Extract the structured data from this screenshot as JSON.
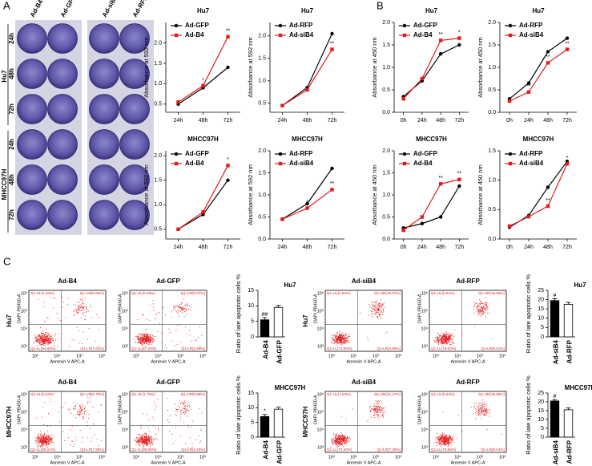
{
  "panel_labels": [
    "A",
    "B",
    "C"
  ],
  "wells": {
    "columns": [
      "Ad-B4",
      "Ad-GFP",
      "Ad-siB4",
      "Ad-RFP"
    ],
    "rows": [
      "24h",
      "48h",
      "72h",
      "24h",
      "48h",
      "72h"
    ],
    "groups": [
      "Hu7",
      "MHCC97H"
    ]
  },
  "chart_data": [
    {
      "type": "line",
      "title": "Hu7",
      "ylabel": "Absorbance at 592 nm",
      "categories": [
        "24h",
        "48h",
        "72h"
      ],
      "ylim": [
        0.3,
        2.5
      ],
      "yticks": [
        0.5,
        {
          "value": 1,
          "label": "1.0"
        },
        1.5,
        {
          "value": 2,
          "label": "2.0"
        }
      ],
      "series": [
        {
          "name": "Ad-GFP",
          "color": "#000000",
          "values": [
            0.5,
            0.9,
            1.4
          ],
          "significance": [
            null,
            null,
            null
          ]
        },
        {
          "name": "Ad-B4",
          "color": "#e41a1c",
          "values": [
            0.55,
            0.95,
            2.15
          ],
          "significance": [
            null,
            "*",
            "**"
          ]
        }
      ]
    },
    {
      "type": "line",
      "title": "Hu7",
      "ylabel": "Absorbance at 592 nm",
      "categories": [
        "24h",
        "48h",
        "72h"
      ],
      "ylim": [
        0.3,
        2.3
      ],
      "yticks": [
        0.5,
        {
          "value": 1,
          "label": "1.0"
        },
        1.5,
        {
          "value": 2,
          "label": "2.0"
        }
      ],
      "series": [
        {
          "name": "Ad-RFP",
          "color": "#000000",
          "values": [
            0.45,
            0.85,
            2.05
          ],
          "significance": [
            null,
            null,
            null
          ]
        },
        {
          "name": "Ad-siB4",
          "color": "#e41a1c",
          "values": [
            0.45,
            0.8,
            1.7
          ],
          "significance": [
            null,
            null,
            "**"
          ]
        }
      ]
    },
    {
      "type": "line",
      "title": "Hu7",
      "ylabel": "Absorbance at 450 nm",
      "categories": [
        "0h",
        "24h",
        "48h",
        "72h"
      ],
      "ylim": [
        0,
        2
      ],
      "yticks": [
        {
          "value": 0,
          "label": "0.0"
        },
        0.5,
        {
          "value": 1,
          "label": "1.0"
        },
        1.5,
        {
          "value": 2,
          "label": "2.0"
        }
      ],
      "series": [
        {
          "name": "Ad-GFP",
          "color": "#000000",
          "values": [
            0.35,
            0.7,
            1.3,
            1.5
          ],
          "significance": [
            null,
            null,
            null,
            null
          ]
        },
        {
          "name": "Ad-B4",
          "color": "#e41a1c",
          "values": [
            0.3,
            0.75,
            1.6,
            1.65
          ],
          "significance": [
            null,
            null,
            "**",
            "*"
          ]
        }
      ]
    },
    {
      "type": "line",
      "title": "Hu7",
      "ylabel": "Absorbance at 450 nm",
      "categories": [
        "0h",
        "24h",
        "48h",
        "72h"
      ],
      "ylim": [
        0,
        2
      ],
      "yticks": [
        {
          "value": 0,
          "label": "0.0"
        },
        0.5,
        {
          "value": 1,
          "label": "1.0"
        },
        1.5,
        {
          "value": 2,
          "label": "2.0"
        }
      ],
      "series": [
        {
          "name": "Ad-RFP",
          "color": "#000000",
          "values": [
            0.3,
            0.65,
            1.35,
            1.65
          ],
          "significance": [
            null,
            null,
            null,
            null
          ]
        },
        {
          "name": "Ad-siB4",
          "color": "#e41a1c",
          "values": [
            0.25,
            0.45,
            1.1,
            1.4
          ],
          "significance": [
            null,
            "**",
            "**",
            "**"
          ]
        }
      ]
    },
    {
      "type": "line",
      "title": "MHCC97H",
      "ylabel": "Absorbance at 592 nm",
      "categories": [
        "24h",
        "48h",
        "72h"
      ],
      "ylim": [
        0.3,
        2.1
      ],
      "yticks": [
        0.5,
        {
          "value": 1,
          "label": "1.0"
        },
        1.5,
        {
          "value": 2,
          "label": "2.0"
        }
      ],
      "series": [
        {
          "name": "Ad-GFP",
          "color": "#000000",
          "values": [
            0.5,
            0.8,
            1.5
          ],
          "significance": [
            null,
            null,
            null
          ]
        },
        {
          "name": "Ad-B4",
          "color": "#e41a1c",
          "values": [
            0.5,
            0.85,
            1.8
          ],
          "significance": [
            null,
            null,
            "*"
          ]
        }
      ]
    },
    {
      "type": "line",
      "title": "MHCC97H",
      "ylabel": "Absorbance at 592 nm",
      "categories": [
        "24h",
        "48h",
        "72h"
      ],
      "ylim": [
        0,
        2
      ],
      "yticks": [
        {
          "value": 0,
          "label": "0.0"
        },
        0.5,
        {
          "value": 1,
          "label": "1.0"
        },
        1.5,
        {
          "value": 2,
          "label": "2.0"
        }
      ],
      "series": [
        {
          "name": "Ad-RFP",
          "color": "#000000",
          "values": [
            0.45,
            0.8,
            1.6
          ],
          "significance": [
            null,
            null,
            null
          ]
        },
        {
          "name": "Ad-siB4",
          "color": "#e41a1c",
          "values": [
            0.45,
            0.7,
            1.12
          ],
          "significance": [
            null,
            "*",
            "**"
          ]
        }
      ]
    },
    {
      "type": "line",
      "title": "MHCC97H",
      "ylabel": "Absorbance at 450 nm",
      "categories": [
        "0h",
        "24h",
        "48h",
        "72h"
      ],
      "ylim": [
        0,
        2
      ],
      "yticks": [
        {
          "value": 0,
          "label": "0.0"
        },
        0.5,
        {
          "value": 1,
          "label": "1.0"
        },
        1.5,
        {
          "value": 2,
          "label": "2.0"
        }
      ],
      "series": [
        {
          "name": "Ad-GFP",
          "color": "#000000",
          "values": [
            0.25,
            0.35,
            0.5,
            1.2
          ],
          "significance": [
            null,
            null,
            null,
            null
          ]
        },
        {
          "name": "Ad-B4",
          "color": "#e41a1c",
          "values": [
            0.2,
            0.5,
            1.25,
            1.35
          ],
          "significance": [
            null,
            null,
            "**",
            "**"
          ]
        }
      ]
    },
    {
      "type": "line",
      "title": "MHCC97H",
      "ylabel": "Absorbance at 450 nm",
      "categories": [
        "0h",
        "24h",
        "48h",
        "72h"
      ],
      "ylim": [
        0,
        1.5
      ],
      "yticks": [
        {
          "value": 0,
          "label": "0.0"
        },
        0.5,
        {
          "value": 1,
          "label": "1.0"
        },
        1.5
      ],
      "series": [
        {
          "name": "Ad-RFP",
          "color": "#000000",
          "values": [
            0.2,
            0.4,
            0.88,
            1.32
          ],
          "significance": [
            null,
            null,
            null,
            null
          ]
        },
        {
          "name": "Ad-siB4",
          "color": "#e41a1c",
          "values": [
            0.22,
            0.38,
            0.56,
            1.28
          ],
          "significance": [
            null,
            null,
            "**",
            "*"
          ]
        }
      ]
    },
    {
      "type": "bar",
      "title": "Hu7",
      "ylabel": "Ratio of late apoptotic cells %",
      "categories": [
        "Ad-B4",
        "Ad-GFP"
      ],
      "values": [
        5.5,
        9.5
      ],
      "errors": [
        0.7,
        0.6
      ],
      "colors": [
        "#000000",
        "#ffffff"
      ],
      "significance": [
        "##",
        null
      ],
      "ylim": [
        0,
        15
      ],
      "yticks": [
        0,
        5,
        10,
        15
      ]
    },
    {
      "type": "bar",
      "title": "Hu7",
      "ylabel": "Ratio of late apoptotic cells %",
      "categories": [
        "Ad-siB4",
        "Ad-RFP"
      ],
      "values": [
        19.5,
        17.5
      ],
      "errors": [
        1,
        1
      ],
      "colors": [
        "#000000",
        "#ffffff"
      ],
      "significance": [
        "#",
        null
      ],
      "ylim": [
        0,
        25
      ],
      "yticks": [
        0,
        5,
        10,
        15,
        20,
        25
      ]
    },
    {
      "type": "bar",
      "title": "MHCC97H",
      "ylabel": "Ratio of late apoptotic cells %",
      "categories": [
        "Ad-B4",
        "Ad-GFP"
      ],
      "values": [
        7,
        9.5
      ],
      "errors": [
        0.7,
        0.7
      ],
      "colors": [
        "#000000",
        "#ffffff"
      ],
      "significance": [
        "*",
        null
      ],
      "ylim": [
        0,
        15
      ],
      "yticks": [
        0,
        5,
        10,
        15
      ]
    },
    {
      "type": "bar",
      "title": "MHCC97H",
      "ylabel": "Ratio of late apoptotic cells %",
      "categories": [
        "Ad-siB4",
        "Ad-RFP"
      ],
      "values": [
        20.5,
        15.5
      ],
      "errors": [
        0.8,
        1
      ],
      "colors": [
        "#000000",
        "#ffffff"
      ],
      "significance": [
        "#",
        null
      ],
      "ylim": [
        0,
        25
      ],
      "yticks": [
        0,
        5,
        10,
        15,
        20,
        25
      ]
    }
  ],
  "flow": {
    "xlabel": "Annexin V APC-A",
    "ylabel": "DAPI PB450-A",
    "ticks": [
      "10³",
      "10⁴",
      "10⁵",
      "10⁶"
    ],
    "row_labels": [
      "Hu7",
      "MHCC97H"
    ],
    "plots": [
      {
        "title": "Ad-B4",
        "quadrants": [
          "Q1-UL(1.54%)",
          "Q1-UR(6.05%)",
          "Q1-LL(84.80%)",
          "Q1-LR(7.61%)"
        ]
      },
      {
        "title": "Ad-GFP",
        "quadrants": [
          "Q1-UL(0.48%)",
          "Q1-UR(9.37%)",
          "Q1-LL(87.26%)",
          "Q1-LR(2.89%)"
        ]
      },
      {
        "title": "Ad-siB4",
        "quadrants": [
          "Q1-UL(4.94%)",
          "Q1-UR(19.07%)",
          "Q1-LL(71.00%)",
          "Q1-LR(4.98%)"
        ]
      },
      {
        "title": "Ad-RFP",
        "quadrants": [
          "Q1-UL(0.64%)",
          "Q1-UR(16.35%)",
          "Q1-LL(78.00%)",
          "Q1-LR(5.01%)"
        ]
      },
      {
        "title": "Ad-B4",
        "quadrants": [
          "Q1-UL(0.42%)",
          "Q1-UR(6.79%)",
          "Q1-LL(85.21%)",
          "Q1-LR(7.58%)"
        ]
      },
      {
        "title": "Ad-GFP",
        "quadrants": [
          "Q1-UL(1.70%)",
          "Q1-UR(8.98%)",
          "Q1-LL(85.05%)",
          "Q1-LR(4.29%)"
        ]
      },
      {
        "title": "Ad-siB4",
        "quadrants": [
          "Q1-UL(1.03%)",
          "Q1-UR(21.27%)",
          "Q1-LL(70.40%)",
          "Q1-LR(7.30%)"
        ]
      },
      {
        "title": "Ad-RFP",
        "quadrants": [
          "Q1-UL(0.62%)",
          "Q1-UR(16.68%)",
          "Q1-LL(76.66%)",
          "Q1-LR(6.04%)"
        ]
      }
    ]
  }
}
